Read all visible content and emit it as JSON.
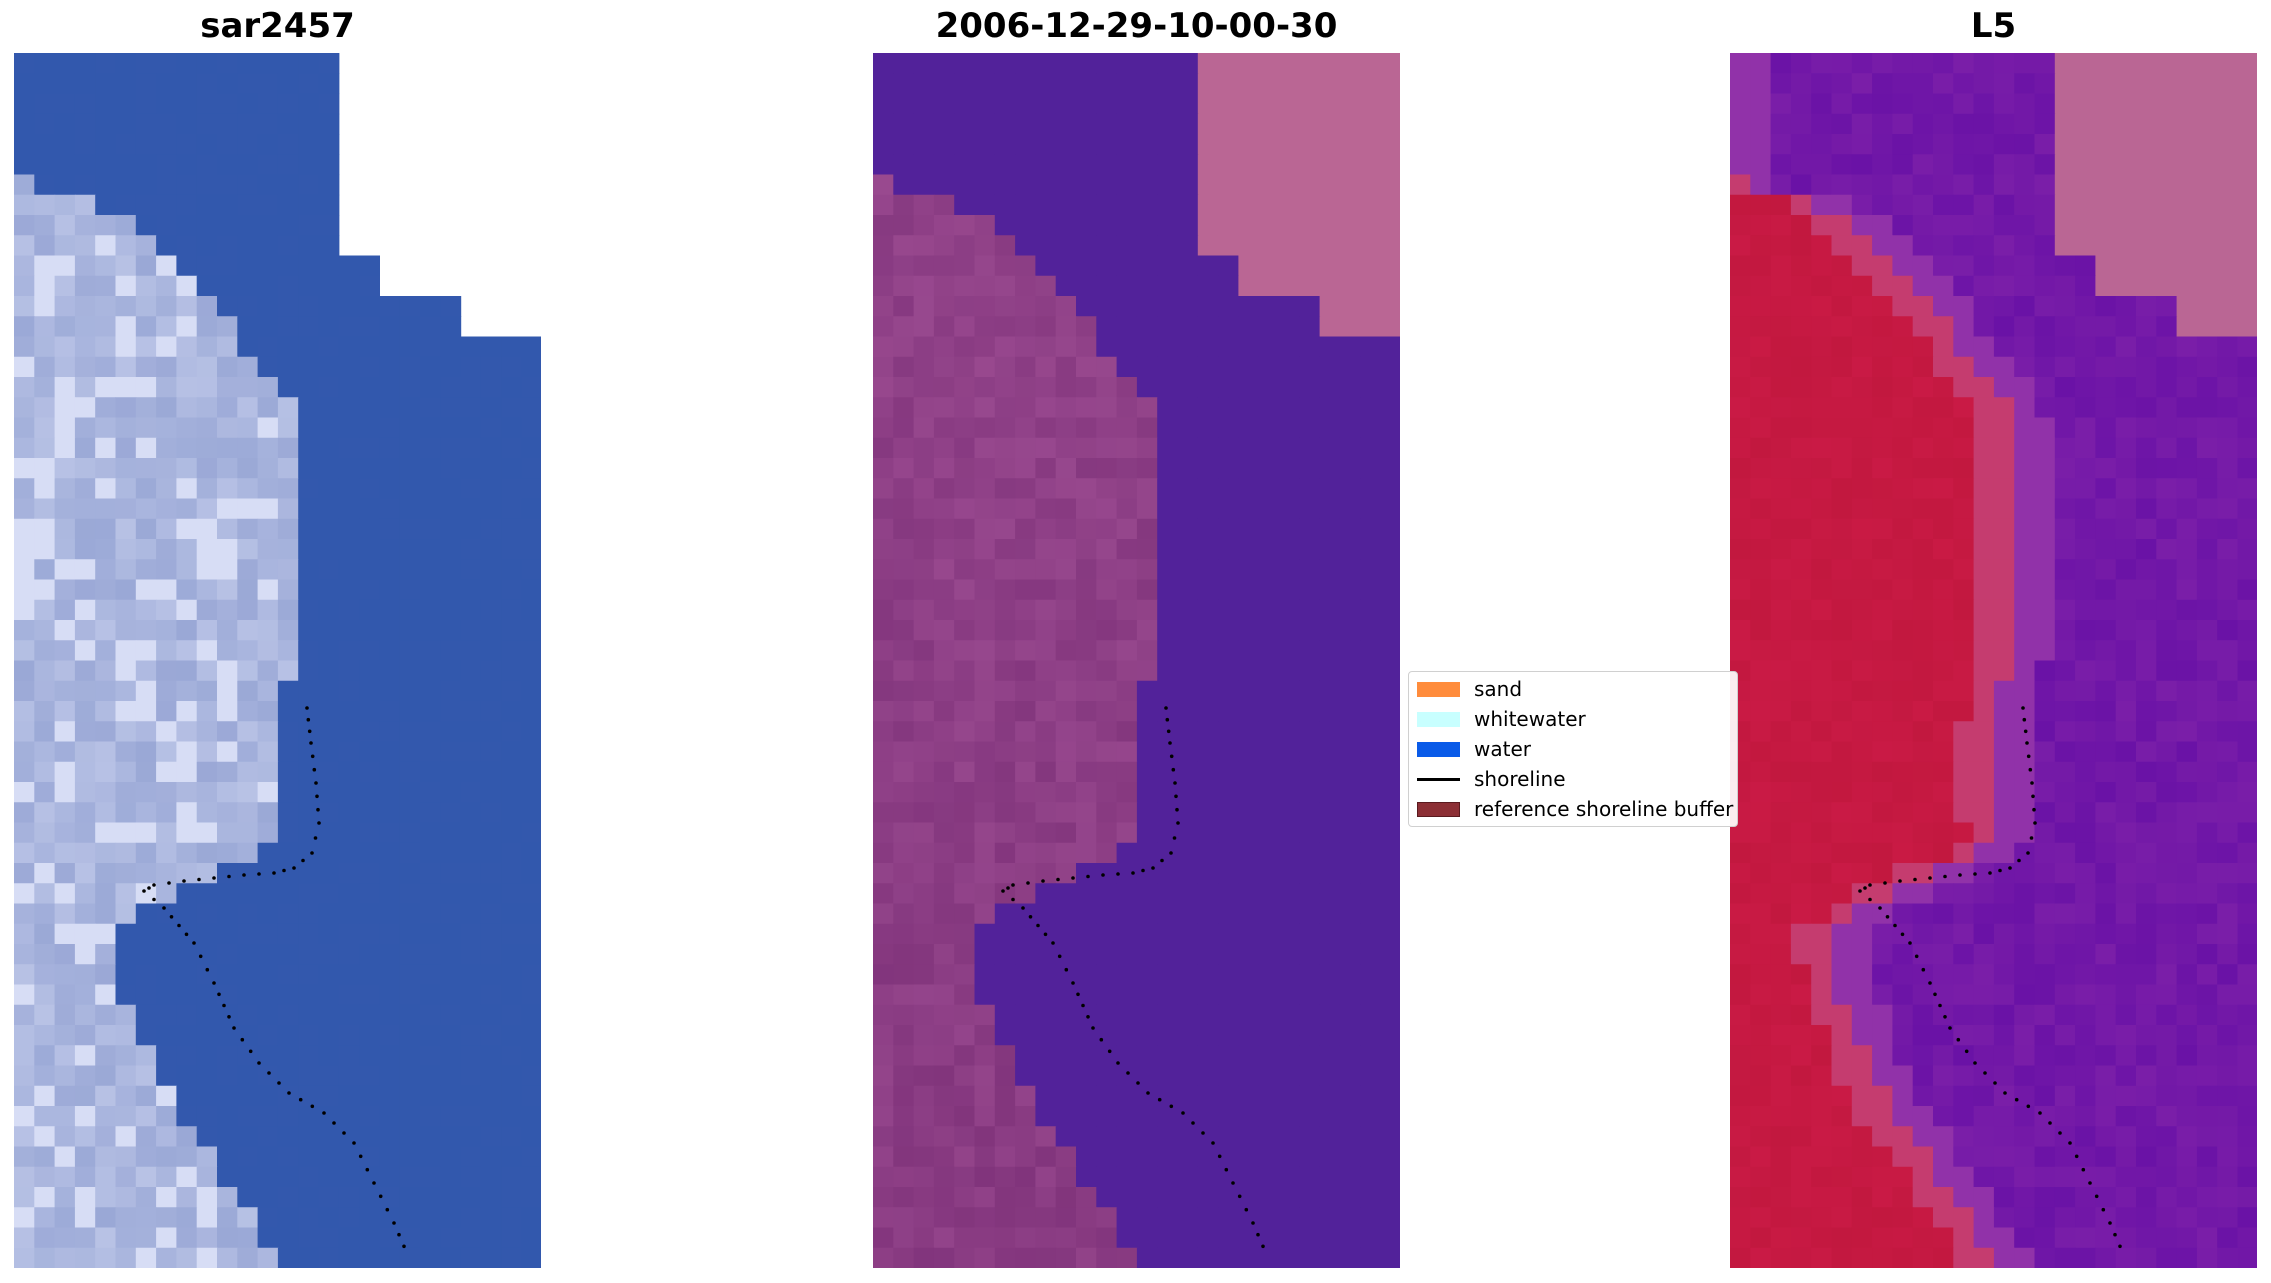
{
  "panels": [
    {
      "title": "sar2457",
      "style": "rgb"
    },
    {
      "title": "2006-12-29-10-00-30",
      "style": "classified"
    },
    {
      "title": "L5",
      "style": "index"
    }
  ],
  "legend": {
    "items": [
      {
        "label": "sand",
        "kind": "patch",
        "color": "#ff8c3c"
      },
      {
        "label": "whitewater",
        "kind": "patch",
        "color": "#c8ffff"
      },
      {
        "label": "water",
        "kind": "patch",
        "color": "#0a5be8"
      },
      {
        "label": "shoreline",
        "kind": "line",
        "color": "#000000"
      },
      {
        "label": "reference shoreline buffer",
        "kind": "patch",
        "color": "#8c2f35"
      }
    ]
  },
  "colors": {
    "sar_water": "#3358ad",
    "sar_land": "#9aa8d6",
    "class_water": "#52229a",
    "class_sand": "#9a4a90",
    "class_corner": "#ba6694",
    "index_water": "#7a1ea8",
    "index_land": "#c2183f",
    "index_corner": "#ba6694",
    "shoreline": "#000000"
  }
}
